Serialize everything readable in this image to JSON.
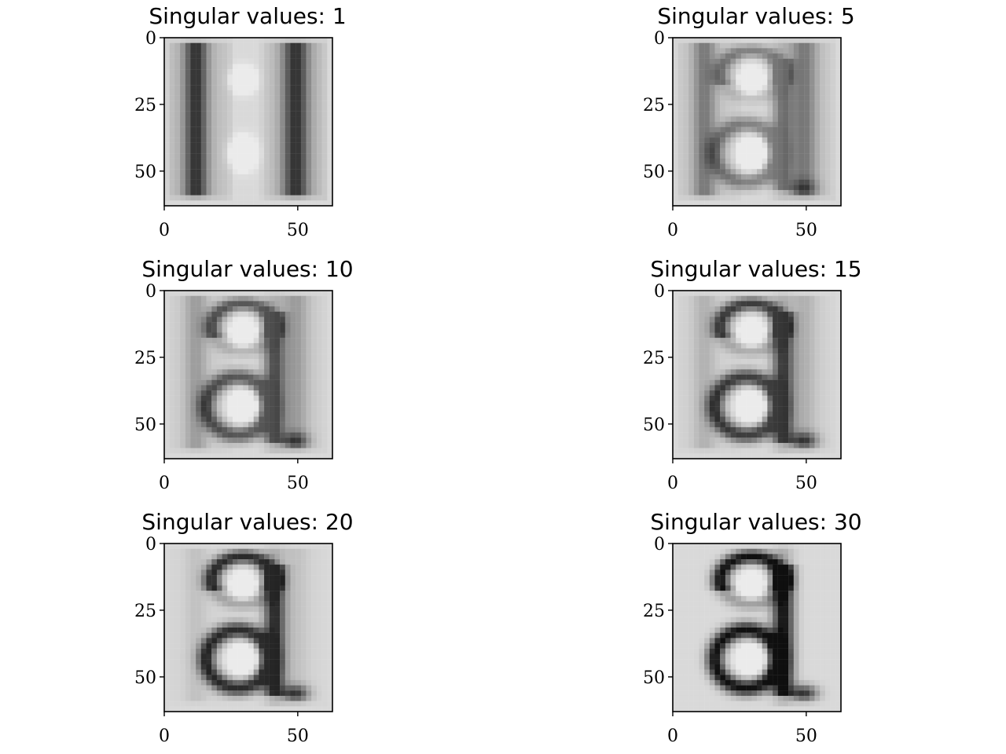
{
  "chart_data": [
    {
      "type": "heatmap",
      "title": "Singular values: 1",
      "rank": 1,
      "colormap": "gray",
      "shape": [
        64,
        64
      ],
      "xticks": [
        0,
        50
      ],
      "yticks": [
        0,
        25,
        50
      ],
      "xlim": [
        0,
        63
      ],
      "ylim": [
        63,
        0
      ],
      "grid": false
    },
    {
      "type": "heatmap",
      "title": "Singular values: 5",
      "rank": 5,
      "colormap": "gray",
      "shape": [
        64,
        64
      ],
      "xticks": [
        0,
        50
      ],
      "yticks": [
        0,
        25,
        50
      ],
      "xlim": [
        0,
        63
      ],
      "ylim": [
        63,
        0
      ],
      "grid": false
    },
    {
      "type": "heatmap",
      "title": "Singular values: 10",
      "rank": 10,
      "colormap": "gray",
      "shape": [
        64,
        64
      ],
      "xticks": [
        0,
        50
      ],
      "yticks": [
        0,
        25,
        50
      ],
      "xlim": [
        0,
        63
      ],
      "ylim": [
        63,
        0
      ],
      "grid": false
    },
    {
      "type": "heatmap",
      "title": "Singular values: 15",
      "rank": 15,
      "colormap": "gray",
      "shape": [
        64,
        64
      ],
      "xticks": [
        0,
        50
      ],
      "yticks": [
        0,
        25,
        50
      ],
      "xlim": [
        0,
        63
      ],
      "ylim": [
        63,
        0
      ],
      "grid": false
    },
    {
      "type": "heatmap",
      "title": "Singular values: 20",
      "rank": 20,
      "colormap": "gray",
      "shape": [
        64,
        64
      ],
      "xticks": [
        0,
        50
      ],
      "yticks": [
        0,
        25,
        50
      ],
      "xlim": [
        0,
        63
      ],
      "ylim": [
        63,
        0
      ],
      "grid": false
    },
    {
      "type": "heatmap",
      "title": "Singular values: 30",
      "rank": 30,
      "colormap": "gray",
      "shape": [
        64,
        64
      ],
      "xticks": [
        0,
        50
      ],
      "yticks": [
        0,
        25,
        50
      ],
      "xlim": [
        0,
        63
      ],
      "ylim": [
        63,
        0
      ],
      "grid": false
    }
  ]
}
